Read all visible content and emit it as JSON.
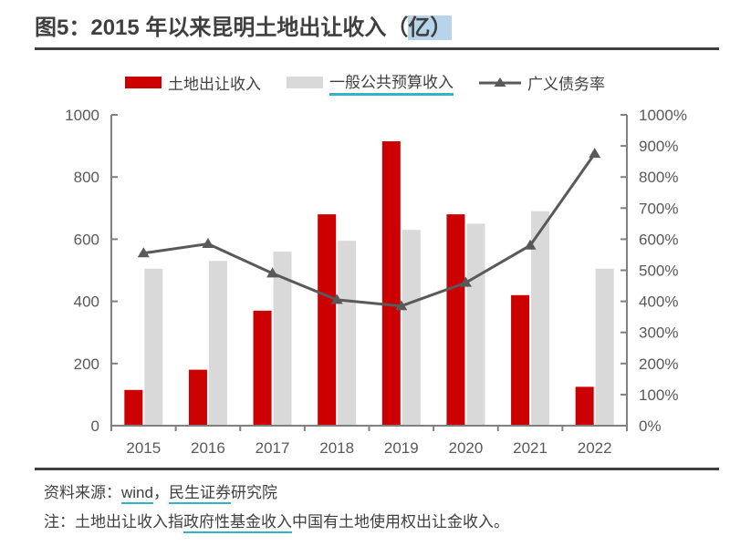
{
  "title": {
    "prefix": "图5：2015 年以来昆明土地出让收入（",
    "highlight": "亿）"
  },
  "legend": [
    {
      "label": "土地出让收入",
      "swatch": "red-bar"
    },
    {
      "label": "一般公共预算收入",
      "swatch": "gray-bar",
      "underlined": true
    },
    {
      "label": "广义债务率",
      "swatch": "line-triangle"
    }
  ],
  "chart_data": {
    "type": "bar",
    "subtype": "dual-axis bar + line",
    "categories": [
      "2015",
      "2016",
      "2017",
      "2018",
      "2019",
      "2020",
      "2021",
      "2022"
    ],
    "series": [
      {
        "name": "土地出让收入",
        "type": "bar",
        "axis": "left",
        "color_key": "red",
        "values": [
          115,
          180,
          370,
          680,
          915,
          680,
          420,
          125
        ]
      },
      {
        "name": "一般公共预算收入",
        "type": "bar",
        "axis": "left",
        "color_key": "gray",
        "values": [
          505,
          530,
          560,
          595,
          630,
          650,
          690,
          505
        ]
      },
      {
        "name": "广义债务率",
        "type": "line",
        "axis": "right",
        "color_key": "line",
        "values": [
          555,
          585,
          490,
          405,
          385,
          460,
          580,
          875
        ]
      }
    ],
    "left_axis": {
      "min": 0,
      "max": 1000,
      "step": 200,
      "tick_labels": [
        "0",
        "200",
        "400",
        "600",
        "800",
        "1000"
      ]
    },
    "right_axis": {
      "min": 0,
      "max": 1000,
      "step": 100,
      "tick_labels": [
        "0%",
        "100%",
        "200%",
        "300%",
        "400%",
        "500%",
        "600%",
        "700%",
        "800%",
        "900%",
        "1000%"
      ]
    },
    "grid": false,
    "legend_position": "top"
  },
  "footer": {
    "source_parts": [
      {
        "text": "资料来源：",
        "underline": false
      },
      {
        "text": "wind",
        "underline": true
      },
      {
        "text": "，",
        "underline": false
      },
      {
        "text": "民生证券",
        "underline": true
      },
      {
        "text": "研究院",
        "underline": false
      }
    ],
    "note_parts": [
      {
        "text": "注：土地出让收入指",
        "underline": false
      },
      {
        "text": "政府性基金收入",
        "underline": true
      },
      {
        "text": "中国有土地使用权出让金收入。",
        "underline": false
      }
    ]
  },
  "colors": {
    "red": "#CC0000",
    "gray": "#D9D9D9",
    "line": "#595959",
    "axis": "#808080",
    "label": "#595959",
    "teal": "#31B2C6",
    "highlight_bg": "#B7D4EA",
    "text_dark": "#3F3F3F"
  }
}
